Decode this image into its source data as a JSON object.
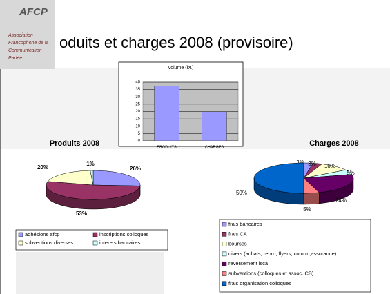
{
  "logo": {
    "name": "AFCP",
    "lines": [
      "Association",
      "Francophone de la",
      "Communication",
      "Parlée"
    ]
  },
  "title": "oduits et charges 2008 (provisoire)",
  "chart_data": [
    {
      "type": "bar",
      "title": "volume (k€)",
      "categories": [
        "PRODUITS",
        "CHARGES"
      ],
      "values": [
        37.5,
        19.5
      ],
      "color": "#9999ff",
      "ylim": [
        0,
        40
      ],
      "yticks": [
        0,
        5,
        10,
        15,
        20,
        25,
        30,
        35,
        40
      ],
      "grid": true
    },
    {
      "type": "pie",
      "title": "Produits 2008",
      "categories": [
        "adhésions afcp",
        "inscriptions colloques",
        "subventions diverses",
        "interets bancaires"
      ],
      "values": [
        26,
        53,
        20,
        1
      ],
      "value_labels": [
        "26%",
        "53%",
        "20%",
        "1%"
      ],
      "colors": [
        "#9999ff",
        "#993366",
        "#ffffcc",
        "#ccffff"
      ]
    },
    {
      "type": "pie",
      "title": "Charges 2008",
      "categories": [
        "frais bancaires",
        "frais CA",
        "bourses",
        "divers (achats, repro, flyers, comm.,assurance)",
        "reversement isca",
        "subventions (colloques et assoc. CB)",
        "frais organisation colloques"
      ],
      "values": [
        3,
        3,
        10,
        5,
        24,
        5,
        50
      ],
      "value_labels": [
        "3%",
        "3%",
        "10%",
        "5%",
        "24%",
        "5%",
        "50%"
      ],
      "colors": [
        "#9999ff",
        "#993366",
        "#ffffcc",
        "#ccffff",
        "#660066",
        "#ff8080",
        "#0066cc"
      ]
    }
  ]
}
